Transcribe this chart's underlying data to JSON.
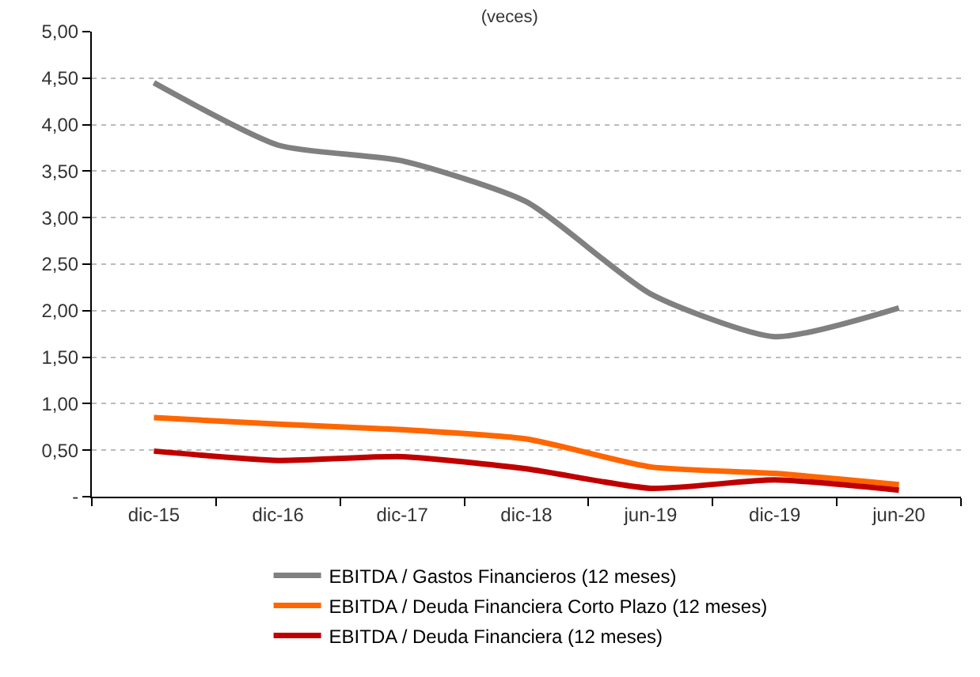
{
  "chart_data": {
    "type": "line",
    "title": "(veces)",
    "categories": [
      "dic-15",
      "dic-16",
      "dic-17",
      "dic-18",
      "jun-19",
      "dic-19",
      "jun-20"
    ],
    "series": [
      {
        "name": "EBITDA / Gastos Financieros (12 meses)",
        "color": "#808080",
        "values": [
          4.45,
          3.78,
          3.61,
          3.17,
          2.18,
          1.72,
          2.03
        ]
      },
      {
        "name": "EBITDA / Deuda Financiera Corto Plazo (12 meses)",
        "color": "#ff6600",
        "values": [
          0.85,
          0.78,
          0.72,
          0.62,
          0.32,
          0.25,
          0.13
        ]
      },
      {
        "name": "EBITDA / Deuda Financiera (12 meses)",
        "color": "#c00000",
        "values": [
          0.49,
          0.39,
          0.43,
          0.3,
          0.09,
          0.18,
          0.07
        ]
      }
    ],
    "ylim": [
      0,
      5
    ],
    "yticks": [
      {
        "value": 0,
        "label": "-"
      },
      {
        "value": 0.5,
        "label": "0,50"
      },
      {
        "value": 1,
        "label": "1,00"
      },
      {
        "value": 1.5,
        "label": "1,50"
      },
      {
        "value": 2,
        "label": "2,00"
      },
      {
        "value": 2.5,
        "label": "2,50"
      },
      {
        "value": 3,
        "label": "3,00"
      },
      {
        "value": 3.5,
        "label": "3,50"
      },
      {
        "value": 4,
        "label": "4,00"
      },
      {
        "value": 4.5,
        "label": "4,50"
      },
      {
        "value": 5,
        "label": "5,00"
      }
    ],
    "grid": "y",
    "legend": "bottom"
  }
}
